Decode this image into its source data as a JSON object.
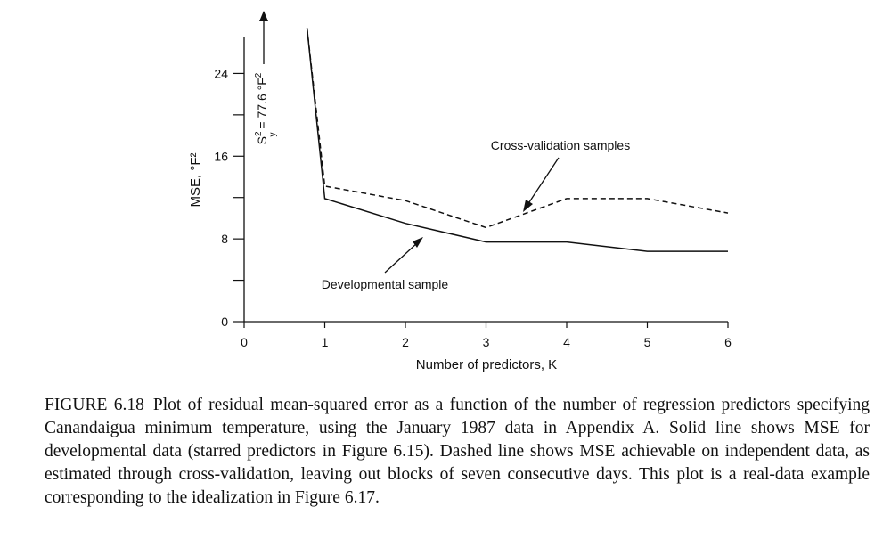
{
  "chart_data": {
    "type": "line",
    "title": "",
    "xlabel": "Number of predictors, K",
    "ylabel": "MSE, °F²",
    "xlim": [
      0,
      6
    ],
    "ylim": [
      0,
      28
    ],
    "x_ticks": [
      0,
      1,
      2,
      3,
      4,
      5,
      6
    ],
    "y_ticks_labeled": [
      0,
      8,
      16,
      24
    ],
    "y_ticks_minor": [
      4,
      12,
      20
    ],
    "grid": false,
    "series": [
      {
        "name": "Developmental sample",
        "style": "solid",
        "x": [
          0.78,
          1,
          2,
          3,
          4,
          5,
          6
        ],
        "y": [
          28.4,
          11.9,
          9.5,
          7.7,
          7.7,
          6.8,
          6.8
        ]
      },
      {
        "name": "Cross-validation samples",
        "style": "dashed",
        "x": [
          0.78,
          1,
          2,
          3,
          4,
          5,
          6
        ],
        "y": [
          28.4,
          13.1,
          11.7,
          9.1,
          11.9,
          11.9,
          10.5
        ]
      }
    ],
    "annotations": {
      "sy_label_main": "S",
      "sy_label_sup": "2",
      "sy_label_sub": "y",
      "sy_label_rest": " = 77.6 °F",
      "sy_label_sup2": "2",
      "developmental": "Developmental sample",
      "cross_validation": "Cross-validation samples"
    }
  },
  "caption": {
    "label": "FIGURE 6.18",
    "text": "Plot of residual mean-squared error as a function of the number of regression predictors specifying Canandaigua minimum temperature, using the January 1987 data in Appendix A. Solid line shows MSE for developmental data (starred predictors in Figure 6.15). Dashed line shows MSE achievable on independent data, as estimated through cross-validation, leaving out blocks of seven consecutive days. This plot is a real-data example corresponding to the idealization in Figure 6.17."
  }
}
